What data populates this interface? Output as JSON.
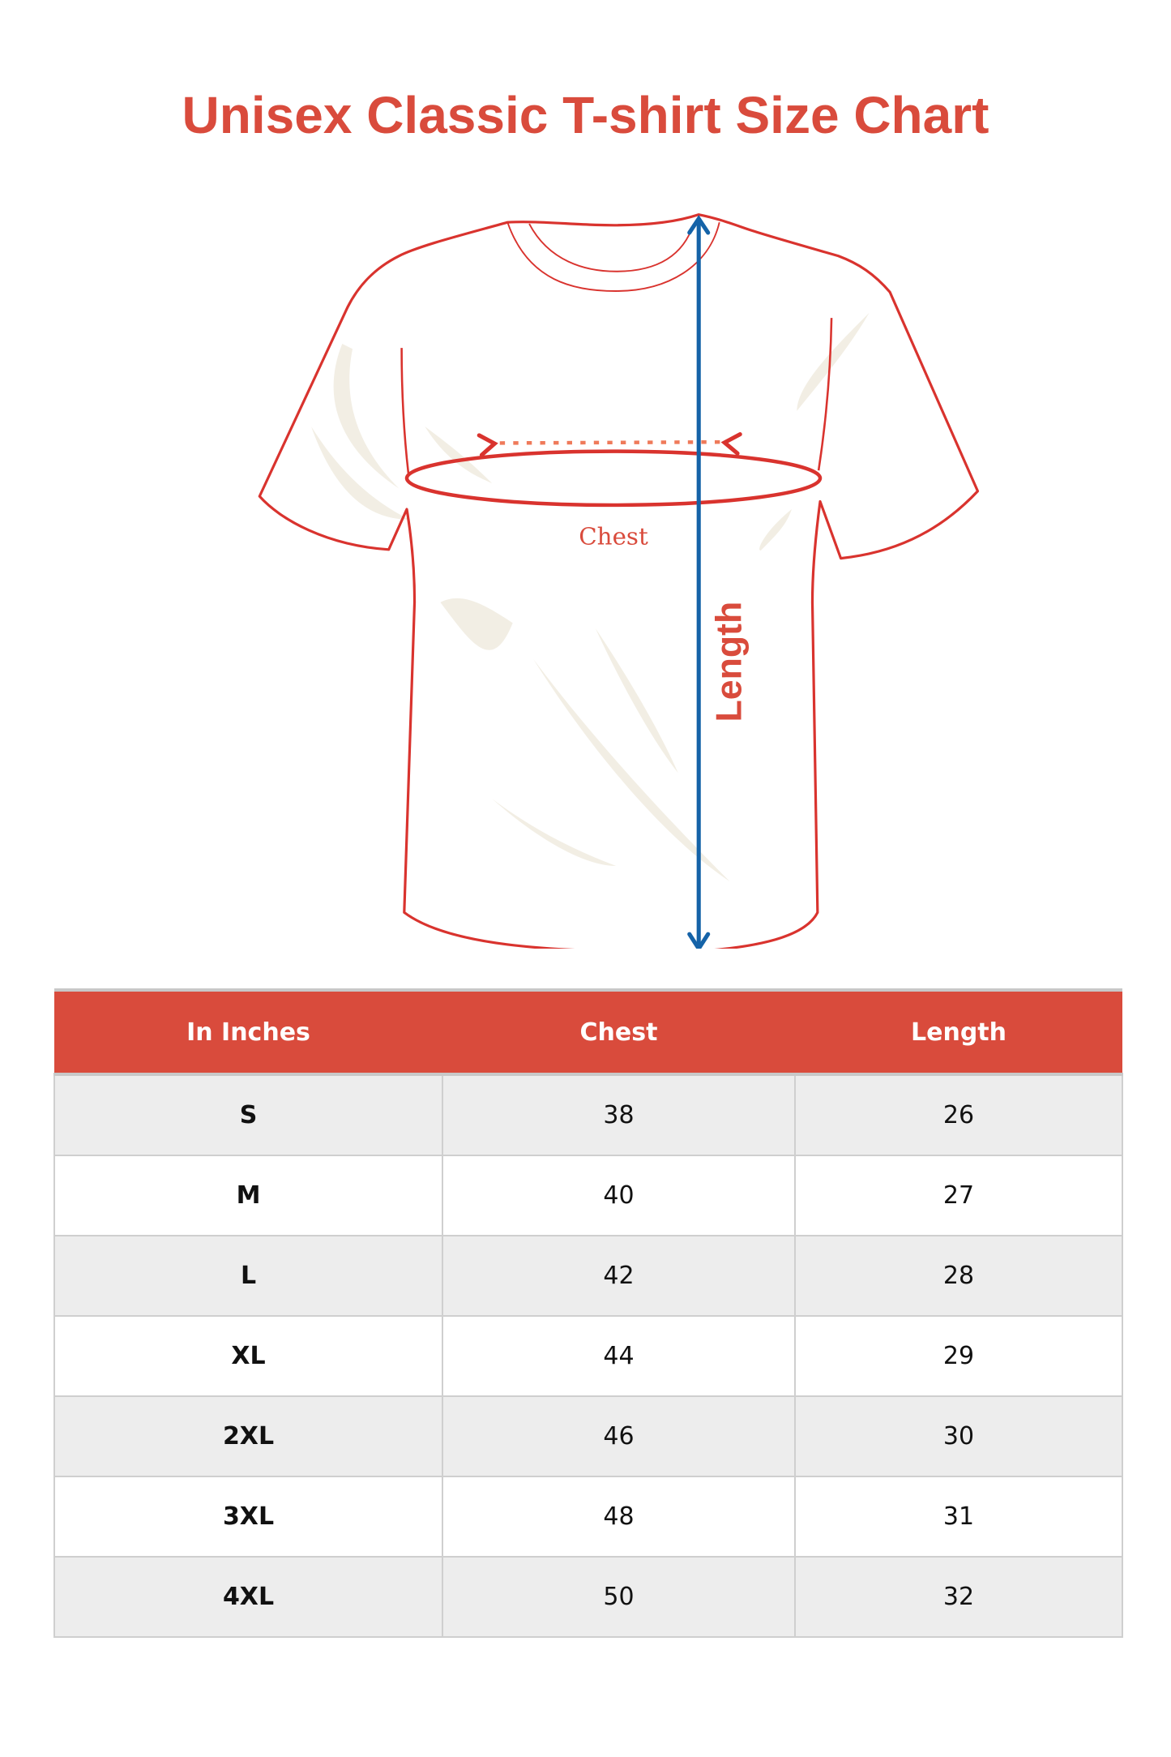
{
  "title": "Unisex Classic T-shirt Size Chart",
  "diagram": {
    "chest_label": "Chest",
    "length_label": "Length",
    "colors": {
      "outline": "#d9332e",
      "length_arrow": "#1563a8",
      "labels": "#d94b3c",
      "fold_shading": "#f2eee4"
    }
  },
  "table": {
    "header_color": "#d94b3c",
    "headers": [
      "In Inches",
      "Chest",
      "Length"
    ],
    "rows": [
      [
        "S",
        "38",
        "26"
      ],
      [
        "M",
        "40",
        "27"
      ],
      [
        "L",
        "42",
        "28"
      ],
      [
        "XL",
        "44",
        "29"
      ],
      [
        "2XL",
        "46",
        "30"
      ],
      [
        "3XL",
        "48",
        "31"
      ],
      [
        "4XL",
        "50",
        "32"
      ]
    ]
  }
}
